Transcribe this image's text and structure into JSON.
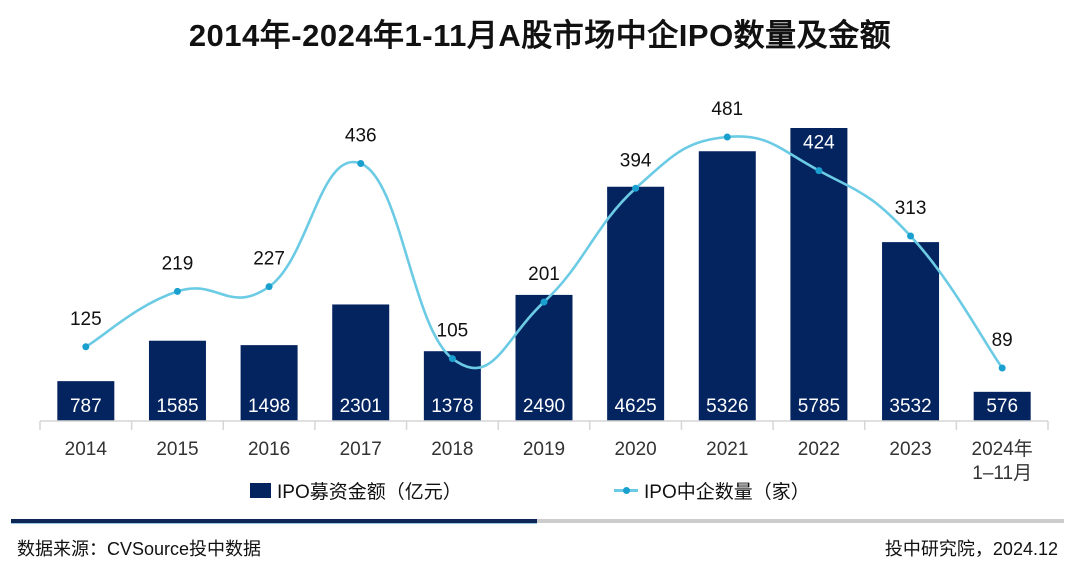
{
  "chart_data": {
    "type": "bar",
    "title": "2014年-2024年1-11月A股市场中企IPO数量及金额",
    "categories": [
      "2014",
      "2015",
      "2016",
      "2017",
      "2018",
      "2019",
      "2020",
      "2021",
      "2022",
      "2023",
      "2024年\n1–11月"
    ],
    "series": [
      {
        "name": "IPO募资金额（亿元）",
        "type": "bar",
        "color": "#042460",
        "values": [
          787,
          1585,
          1498,
          2301,
          1378,
          2490,
          4625,
          5326,
          5785,
          3532,
          576
        ]
      },
      {
        "name": "IPO中企数量（家）",
        "type": "line",
        "smooth": true,
        "color": "#6ccbe4",
        "marker_color": "#1aa0cf",
        "values": [
          125,
          219,
          227,
          436,
          105,
          201,
          394,
          481,
          424,
          313,
          89
        ]
      }
    ],
    "xlabel": "",
    "ylabel": "",
    "y_axes_visible": false,
    "grid": false,
    "data_labels": true,
    "legend_position": "bottom"
  },
  "legend": {
    "bar_label": "IPO募资金额（亿元）",
    "line_label": "IPO中企数量（家）"
  },
  "footer": {
    "source": "数据来源：CVSource投中数据",
    "credit": "投中研究院，2024.12"
  }
}
